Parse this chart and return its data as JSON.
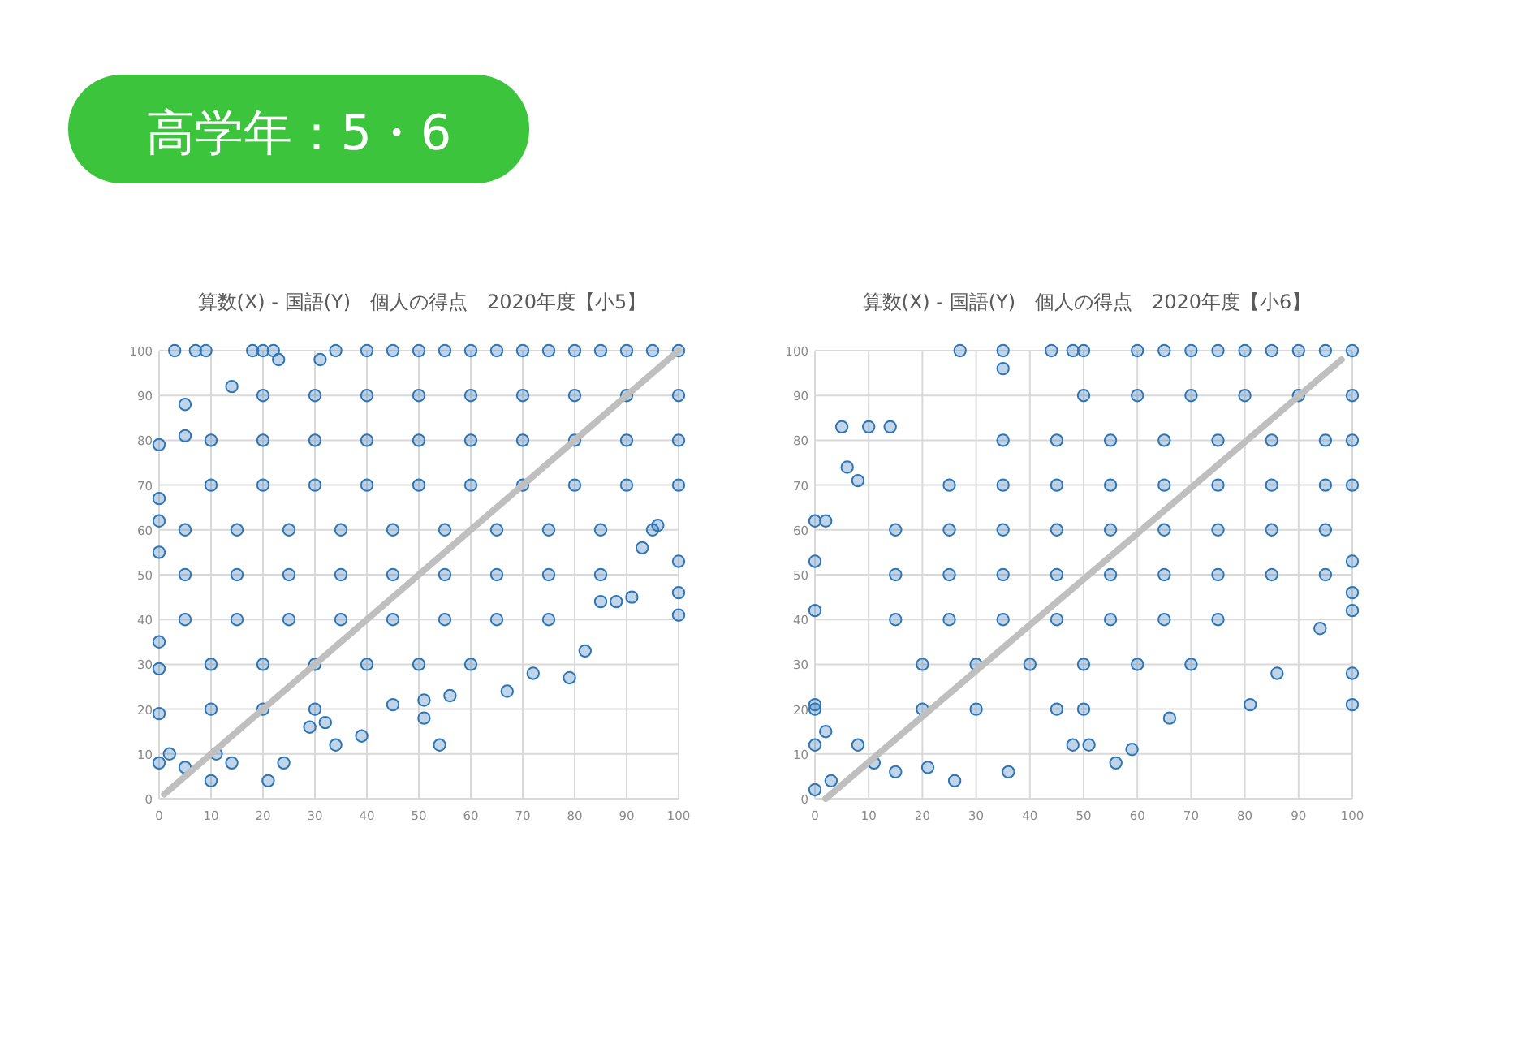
{
  "chart_data": [
    {
      "type": "other",
      "title": "高学年：5・6",
      "color": "#3cc43c"
    },
    {
      "type": "scatter",
      "title": "算数(X) - 国語(Y)　個人の得点　2020年度【小5】",
      "xlim": [
        0,
        100
      ],
      "ylim": [
        0,
        100
      ],
      "xticks": [
        0,
        10,
        20,
        30,
        40,
        50,
        60,
        70,
        80,
        90,
        100
      ],
      "yticks": [
        0,
        10,
        20,
        30,
        40,
        50,
        60,
        70,
        80,
        90,
        100
      ],
      "grid": true,
      "series": [
        {
          "type": "scatter",
          "color": "#2e75b6",
          "marker": "circle",
          "x": [
            3,
            7,
            9,
            18,
            20,
            22,
            34,
            0,
            0,
            0,
            0,
            0,
            0,
            0,
            0,
            10,
            21,
            24,
            14,
            2,
            5,
            11,
            54,
            34,
            32,
            39,
            29,
            45,
            51,
            51,
            56,
            67,
            72,
            79,
            82,
            85,
            88,
            91,
            100,
            100,
            100,
            96,
            93,
            5,
            5,
            14,
            23,
            31,
            40,
            45,
            50,
            55,
            60,
            65,
            70,
            75,
            80,
            85,
            90,
            95,
            100,
            20,
            30,
            40,
            50,
            60,
            70,
            80,
            90,
            100,
            10,
            20,
            30,
            40,
            50,
            60,
            70,
            80,
            90,
            100,
            10,
            20,
            30,
            40,
            50,
            60,
            70,
            80,
            90,
            100,
            5,
            15,
            25,
            35,
            45,
            55,
            65,
            75,
            85,
            95,
            5,
            15,
            25,
            35,
            45,
            55,
            65,
            75,
            85,
            5,
            15,
            25,
            35,
            45,
            55,
            65,
            75,
            10,
            20,
            30,
            40,
            50,
            60,
            10,
            20,
            30
          ],
          "values": [
            100,
            100,
            100,
            100,
            100,
            100,
            100,
            79,
            67,
            62,
            55,
            35,
            29,
            19,
            8,
            4,
            4,
            8,
            8,
            10,
            7,
            10,
            12,
            12,
            17,
            14,
            16,
            21,
            18,
            22,
            23,
            24,
            28,
            27,
            33,
            44,
            44,
            45,
            41,
            46,
            53,
            61,
            56,
            88,
            81,
            92,
            98,
            98,
            100,
            100,
            100,
            100,
            100,
            100,
            100,
            100,
            100,
            100,
            100,
            100,
            100,
            90,
            90,
            90,
            90,
            90,
            90,
            90,
            90,
            90,
            80,
            80,
            80,
            80,
            80,
            80,
            80,
            80,
            80,
            80,
            70,
            70,
            70,
            70,
            70,
            70,
            70,
            70,
            70,
            70,
            60,
            60,
            60,
            60,
            60,
            60,
            60,
            60,
            60,
            60,
            50,
            50,
            50,
            50,
            50,
            50,
            50,
            50,
            50,
            40,
            40,
            40,
            40,
            40,
            40,
            40,
            40,
            30,
            30,
            30,
            30,
            30,
            30,
            20,
            20,
            20
          ]
        },
        {
          "type": "line",
          "color": "#bfbfbf",
          "marker": "none",
          "x": [
            1,
            100
          ],
          "values": [
            1,
            100
          ]
        }
      ]
    },
    {
      "type": "scatter",
      "title": "算数(X) - 国語(Y)　個人の得点　2020年度【小6】",
      "xlim": [
        0,
        100
      ],
      "ylim": [
        0,
        100
      ],
      "xticks": [
        0,
        10,
        20,
        30,
        40,
        50,
        60,
        70,
        80,
        90,
        100
      ],
      "yticks": [
        0,
        10,
        20,
        30,
        40,
        50,
        60,
        70,
        80,
        90,
        100
      ],
      "grid": true,
      "series": [
        {
          "type": "scatter",
          "color": "#2e75b6",
          "marker": "circle",
          "x": [
            0,
            0,
            0,
            0,
            0,
            0,
            0,
            2,
            3,
            5,
            10,
            14,
            8,
            6,
            27,
            35,
            35,
            44,
            48,
            50,
            26,
            36,
            15,
            21,
            11,
            56,
            59,
            48,
            51,
            66,
            81,
            100,
            100,
            86,
            94,
            100,
            100,
            100,
            2,
            8,
            60,
            65,
            70,
            75,
            80,
            85,
            90,
            95,
            100,
            50,
            60,
            70,
            80,
            90,
            100,
            35,
            45,
            55,
            65,
            75,
            85,
            95,
            100,
            25,
            35,
            45,
            55,
            65,
            75,
            85,
            95,
            100,
            15,
            25,
            35,
            45,
            55,
            65,
            75,
            85,
            95,
            15,
            25,
            35,
            45,
            55,
            65,
            75,
            85,
            95,
            15,
            25,
            35,
            45,
            55,
            65,
            75,
            20,
            30,
            40,
            50,
            60,
            70,
            20,
            30,
            45,
            50
          ],
          "values": [
            2,
            12,
            20,
            21,
            42,
            53,
            62,
            62,
            4,
            83,
            83,
            83,
            71,
            74,
            100,
            100,
            96,
            100,
            100,
            100,
            4,
            6,
            6,
            7,
            8,
            8,
            11,
            12,
            12,
            18,
            21,
            21,
            28,
            28,
            38,
            42,
            46,
            53,
            15,
            12,
            100,
            100,
            100,
            100,
            100,
            100,
            100,
            100,
            100,
            90,
            90,
            90,
            90,
            90,
            90,
            80,
            80,
            80,
            80,
            80,
            80,
            80,
            80,
            70,
            70,
            70,
            70,
            70,
            70,
            70,
            70,
            70,
            60,
            60,
            60,
            60,
            60,
            60,
            60,
            60,
            60,
            50,
            50,
            50,
            50,
            50,
            50,
            50,
            50,
            50,
            40,
            40,
            40,
            40,
            40,
            40,
            40,
            30,
            30,
            30,
            30,
            30,
            30,
            20,
            20,
            20,
            20
          ]
        },
        {
          "type": "line",
          "color": "#bfbfbf",
          "marker": "none",
          "x": [
            2,
            98
          ],
          "values": [
            0,
            98
          ]
        }
      ]
    }
  ]
}
